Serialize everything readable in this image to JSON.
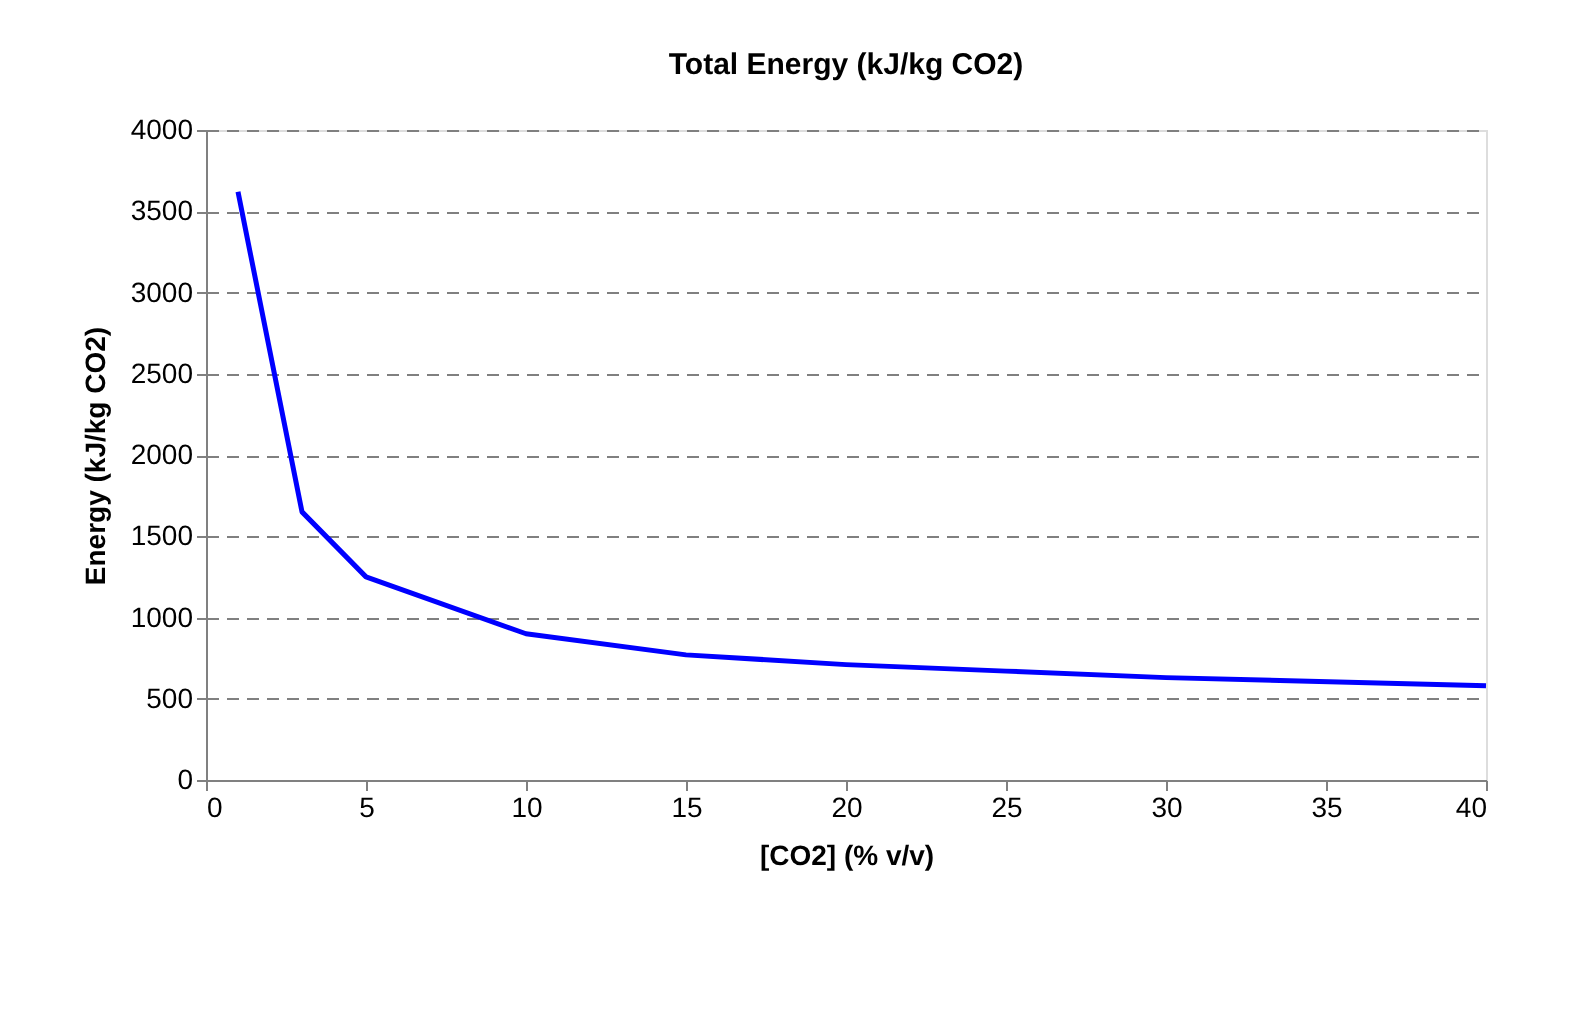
{
  "chart_data": {
    "type": "line",
    "title": "Total Energy (kJ/kg CO2)",
    "xlabel": "[CO2] (% v/v)",
    "ylabel": "Energy (kJ/kg CO2)",
    "x": [
      1,
      3,
      5,
      10,
      15,
      20,
      25,
      30,
      40
    ],
    "series": [
      {
        "color": "#0000ff",
        "values": [
          3620,
          1650,
          1250,
          900,
          770,
          710,
          670,
          630,
          580
        ]
      }
    ],
    "xlim": [
      0,
      40
    ],
    "xticks": [
      0,
      5,
      10,
      15,
      20,
      25,
      30,
      35,
      40
    ],
    "ylim": [
      0,
      4000
    ],
    "yticks": [
      0,
      500,
      1000,
      1500,
      2000,
      2500,
      3000,
      3500,
      4000
    ],
    "grid": "y",
    "marker": "none",
    "line_style": "solid"
  }
}
